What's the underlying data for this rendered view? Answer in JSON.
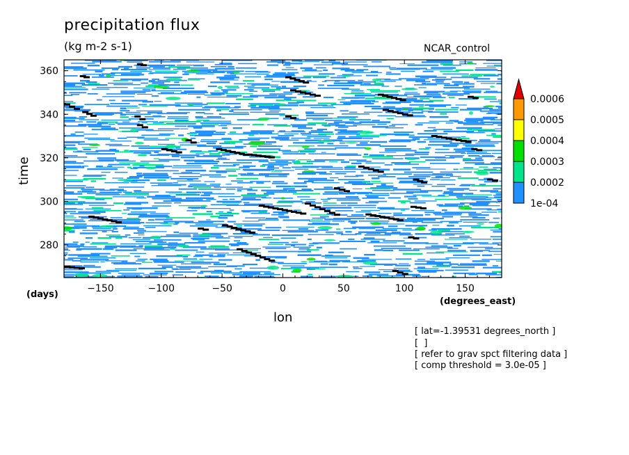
{
  "chart_data": {
    "type": "heatmap",
    "title": "precipitation flux",
    "units_label": "(kg m-2 s-1)",
    "dataset_label": "NCAR_control",
    "xlabel": "lon",
    "xunits": "(degrees_east)",
    "ylabel": "time",
    "yunits": "(days)",
    "xlim": [
      -180,
      180
    ],
    "ylim": [
      265,
      365
    ],
    "xticks": [
      -150,
      -100,
      -50,
      0,
      50,
      100,
      150
    ],
    "yticks": [
      280,
      300,
      320,
      340,
      360
    ],
    "colorbar": {
      "levels": [
        "1e-04",
        "0.0002",
        "0.0003",
        "0.0004",
        "0.0005",
        "0.0006"
      ],
      "colors": [
        "#1e90ff",
        "#00e58c",
        "#00e000",
        "#ffff00",
        "#ff9900",
        "#e00000"
      ]
    },
    "annotations": [
      "[ lat=-1.39531 degrees_north ]",
      "[  ]",
      "[ refer to grav spct filtering data ]",
      "[ comp threshold = 3.0e-05 ]"
    ]
  }
}
